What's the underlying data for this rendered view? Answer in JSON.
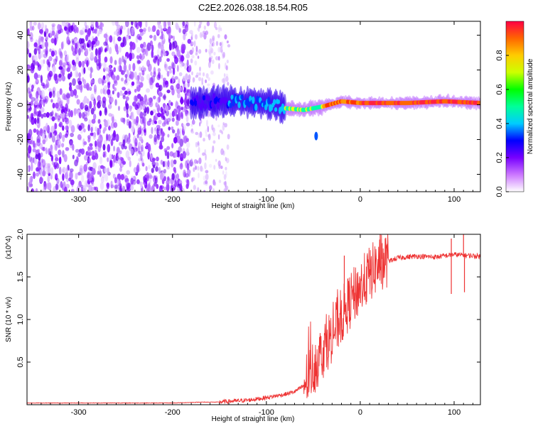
{
  "title": "C2E2.2026.038.18.54.R05",
  "chart_data": [
    {
      "type": "heatmap",
      "title": "C2E2.2026.038.18.54.R05",
      "xlabel": "Height of straight line (km)",
      "ylabel": "Frequency (Hz)",
      "xlim": [
        -355,
        128
      ],
      "ylim": [
        -50,
        48
      ],
      "x_ticks": [
        -300,
        -200,
        -100,
        0,
        100
      ],
      "y_ticks": [
        -40,
        -20,
        0,
        20,
        40
      ],
      "colorbar": {
        "label": "Normalized spectral amplitude",
        "range": [
          0.0,
          1.0
        ],
        "ticks": [
          0.0,
          0.2,
          0.4,
          0.6,
          0.8
        ]
      },
      "features": {
        "noise_region_km": [
          -355,
          -180
        ],
        "sparse_noise_km": [
          -180,
          -140
        ],
        "signal_onset_km": -180,
        "signal_ridge": [
          {
            "x": -180,
            "f": 1
          },
          {
            "x": -140,
            "f": 2
          },
          {
            "x": -100,
            "f": 1
          },
          {
            "x": -80,
            "f": -2
          },
          {
            "x": -60,
            "f": -3
          },
          {
            "x": -40,
            "f": -1
          },
          {
            "x": -20,
            "f": 2
          },
          {
            "x": 0,
            "f": 1
          },
          {
            "x": 50,
            "f": 1
          },
          {
            "x": 90,
            "f": 2
          },
          {
            "x": 128,
            "f": 1
          }
        ],
        "isolated_spot": {
          "x": -47,
          "f": -18
        }
      }
    },
    {
      "type": "line",
      "xlabel": "Height of straight line (km)",
      "ylabel": "SNR (10 * v/v)",
      "scale_label": "(x10^4)",
      "xlim": [
        -355,
        128
      ],
      "ylim": [
        0,
        2.0
      ],
      "x_ticks": [
        -300,
        -200,
        -100,
        0,
        100
      ],
      "y_ticks": [
        0.5,
        1.0,
        1.5,
        2.0
      ],
      "y_tick_labels": [
        "0.5",
        "1.0",
        "1.5",
        "2.0"
      ],
      "color": "#ee3333",
      "series": [
        {
          "name": "SNR",
          "x": [
            -355,
            -300,
            -250,
            -200,
            -170,
            -150,
            -120,
            -100,
            -90,
            -80,
            -70,
            -60,
            -50,
            -40,
            -30,
            -20,
            -10,
            0,
            10,
            20,
            30,
            40,
            60,
            80,
            100,
            110,
            128
          ],
          "values": [
            0.02,
            0.02,
            0.02,
            0.02,
            0.03,
            0.03,
            0.05,
            0.08,
            0.1,
            0.12,
            0.15,
            0.22,
            0.4,
            0.6,
            0.8,
            1.0,
            1.2,
            1.35,
            1.5,
            1.62,
            1.68,
            1.72,
            1.74,
            1.73,
            1.76,
            1.75,
            1.74
          ]
        }
      ],
      "annotations": [
        {
          "x": 97,
          "y": 1.95
        },
        {
          "x": 110,
          "y": 2.0
        },
        {
          "x": 97,
          "y": 1.3
        },
        {
          "x": 111,
          "y": 1.32
        },
        {
          "x": -17,
          "y": 1.75
        }
      ]
    }
  ]
}
